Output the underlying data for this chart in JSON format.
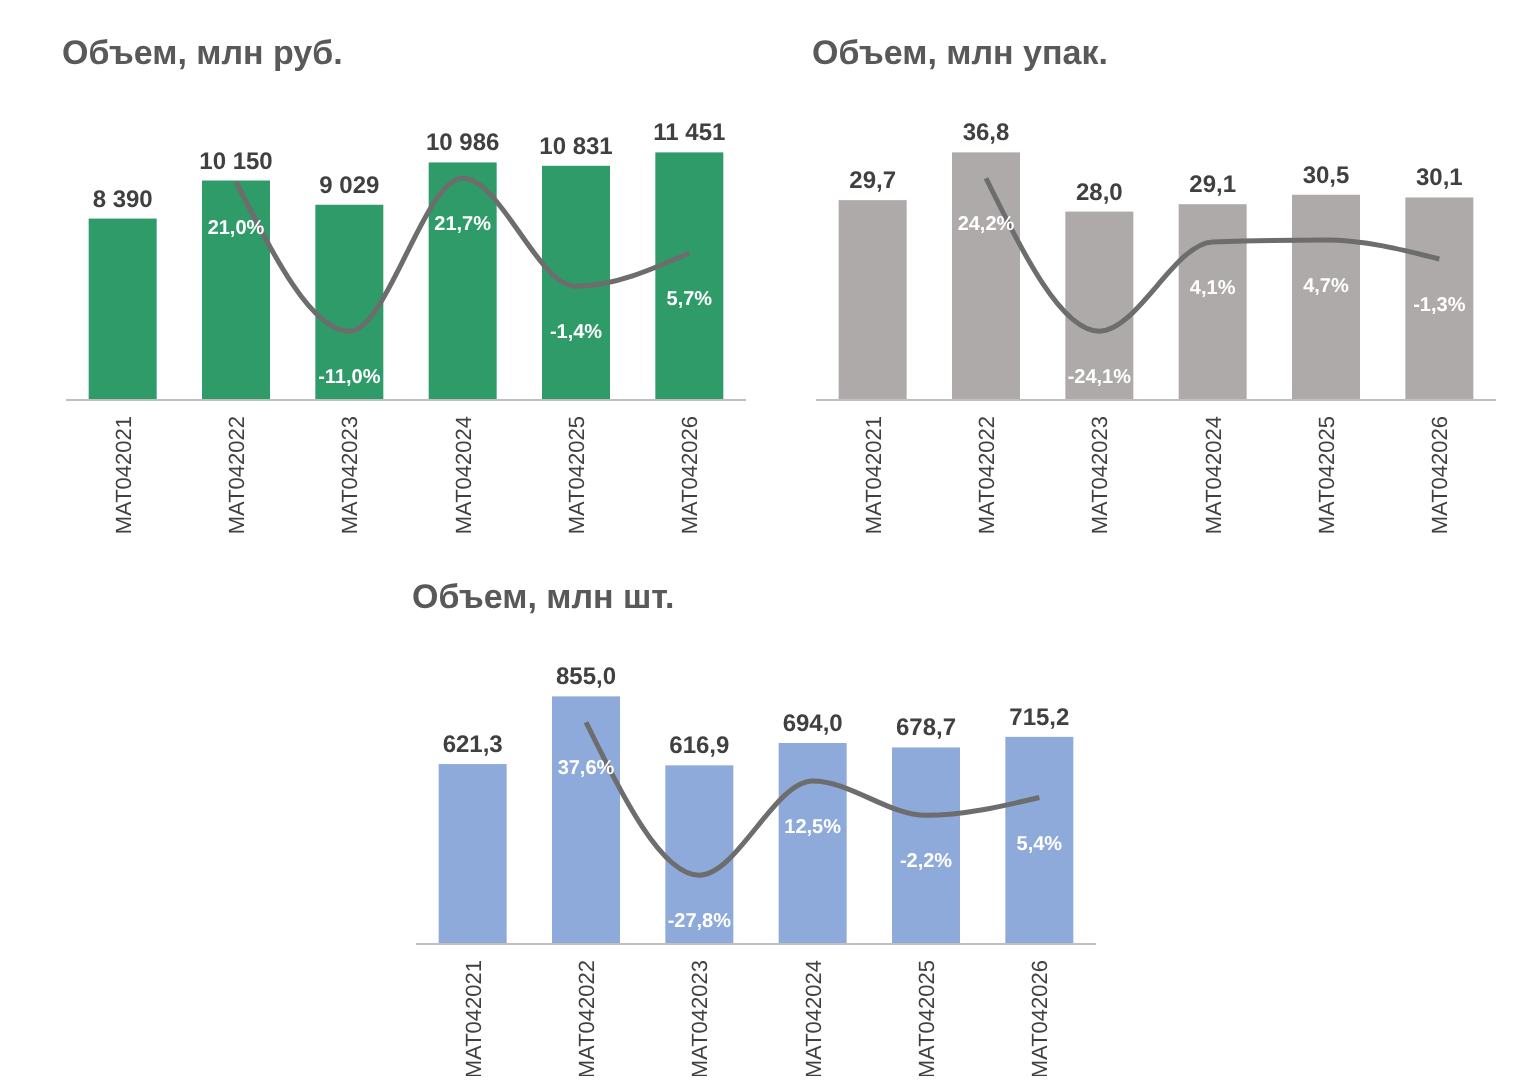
{
  "chart_data": [
    {
      "type": "bar",
      "title": "Объем, млн руб.",
      "categories": [
        "MAT042021",
        "MAT042022",
        "MAT042023",
        "MAT042024",
        "MAT042025",
        "MAT042026"
      ],
      "tick_labels": "x",
      "series": [
        {
          "color": "#2e9b69",
          "values": [
            8390,
            10150,
            9029,
            10986,
            10831,
            11451
          ],
          "value_labels": [
            "8 390",
            "10 150",
            "9 029",
            "10 986",
            "10 831",
            "11 451"
          ]
        },
        {
          "type": "line",
          "axis": "y2",
          "color": "#6d6d6d",
          "values": [
            null,
            21.0,
            -11.0,
            21.7,
            -1.4,
            5.7
          ],
          "value_labels": [
            null,
            "21,0%",
            "-11,0%",
            "21,7%",
            "-1,4%",
            "5,7%"
          ]
        }
      ]
    },
    {
      "type": "bar",
      "title": "Объем, млн упак.",
      "categories": [
        "MAT042021",
        "MAT042022",
        "MAT042023",
        "MAT042024",
        "MAT042025",
        "MAT042026"
      ],
      "tick_labels": "x",
      "series": [
        {
          "color": "#aeaaaa",
          "values": [
            29.7,
            36.8,
            28.0,
            29.1,
            30.5,
            30.1
          ],
          "value_labels": [
            "29,7",
            "36,8",
            "28,0",
            "29,1",
            "30,5",
            "30,1"
          ]
        },
        {
          "type": "line",
          "axis": "y2",
          "color": "#6d6d6d",
          "values": [
            null,
            24.2,
            -24.1,
            4.1,
            4.7,
            -1.3
          ],
          "value_labels": [
            null,
            "24,2%",
            "-24,1%",
            "4,1%",
            "4,7%",
            "-1,3%"
          ]
        }
      ]
    },
    {
      "type": "bar",
      "title": "Объем, млн шт.",
      "categories": [
        "MAT042021",
        "MAT042022",
        "MAT042023",
        "MAT042024",
        "MAT042025",
        "MAT042026"
      ],
      "tick_labels": "x",
      "series": [
        {
          "color": "#8eaadb",
          "values": [
            621.3,
            855.0,
            616.9,
            694.0,
            678.7,
            715.2
          ],
          "value_labels": [
            "621,3",
            "855,0",
            "616,9",
            "694,0",
            "678,7",
            "715,2"
          ]
        },
        {
          "type": "line",
          "axis": "y2",
          "color": "#6d6d6d",
          "values": [
            null,
            37.6,
            -27.8,
            12.5,
            -2.2,
            5.4
          ],
          "value_labels": [
            null,
            "37,6%",
            "-27,8%",
            "12,5%",
            "-2,2%",
            "5,4%"
          ]
        }
      ]
    }
  ]
}
